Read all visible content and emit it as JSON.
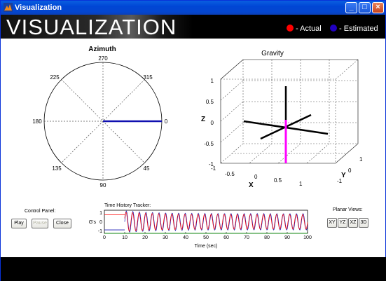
{
  "window": {
    "title": "Visualization"
  },
  "banner": {
    "title": "VISUALIZATION",
    "legend": [
      {
        "label": "- Actual",
        "color": "#ff0000"
      },
      {
        "label": "- Estimated",
        "color": "#2000c0"
      }
    ]
  },
  "azimuth": {
    "title": "Azimuth",
    "angle_labels": [
      "270",
      "315",
      "0",
      "45",
      "90",
      "135",
      "180",
      "225"
    ],
    "estimated_angle": 0,
    "line_color": "#1010b0"
  },
  "gravity": {
    "title": "Gravity",
    "z_label": "Z",
    "x_label": "X",
    "y_label": "Y",
    "z_ticks": [
      "1",
      "0.5",
      "0",
      "-0.5",
      "-1"
    ],
    "x_ticks": [
      "-1",
      "-0.5",
      "0",
      "0.5",
      "1"
    ],
    "y_ticks": [
      "1",
      "0",
      "-1"
    ],
    "vector_color": "#ff00ff"
  },
  "control_panel": {
    "title": "Control Panel:",
    "play": "Play",
    "pause": "Pause",
    "close": "Close"
  },
  "time_history": {
    "title": "Time History Tracker:",
    "ylabel": "G's",
    "xlabel": "Time (sec)",
    "y_ticks": [
      "1",
      "0",
      "-1"
    ],
    "x_ticks": [
      "0",
      "10",
      "20",
      "30",
      "40",
      "50",
      "60",
      "70",
      "80",
      "90",
      "100"
    ]
  },
  "planar_views": {
    "title": "Planar Views:",
    "buttons": [
      "XY",
      "YZ",
      "XZ",
      "3D"
    ]
  },
  "chart_data": {
    "type": "line",
    "title": "Time History Tracker:",
    "xlabel": "Time (sec)",
    "ylabel": "G's",
    "xlim": [
      0,
      100
    ],
    "ylim": [
      -1,
      1
    ],
    "series": [
      {
        "color": "#ff0000",
        "x": [
          0,
          10
        ],
        "values": [
          0.6,
          0.6
        ]
      },
      {
        "color": "#1010b0",
        "x": [
          0,
          10
        ],
        "values": [
          -0.7,
          -0.7
        ]
      },
      {
        "color": "#00a000",
        "x": [
          0,
          100
        ],
        "values": [
          -1,
          -1
        ]
      }
    ]
  }
}
